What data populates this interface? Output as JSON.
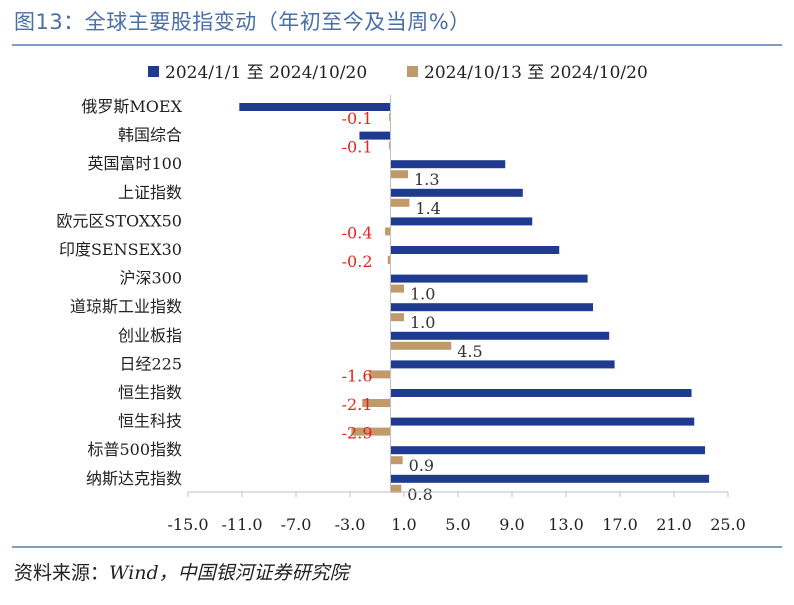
{
  "title": "图13：全球主要股指变动（年初至今及当周%）",
  "source_label": "资料来源：",
  "source_text": "Wind，中国银河证券研究院",
  "colors": {
    "series1": "#1f3b8f",
    "series2": "#c19a6b",
    "negative_label": "#e8231e",
    "title": "#4a6fa5"
  },
  "chart_data": {
    "type": "bar",
    "orientation": "horizontal",
    "title": "图13：全球主要股指变动（年初至今及当周%）",
    "categories": [
      "俄罗斯MOEX",
      "韩国综合",
      "英国富时100",
      "上证指数",
      "欧元区STOXX50",
      "印度SENSEX30",
      "沪深300",
      "道琼斯工业指数",
      "创业板指",
      "日经225",
      "恒生指数",
      "恒生科技",
      "标普500指数",
      "纳斯达克指数"
    ],
    "series": [
      {
        "name": "2024/1/1 至 2024/10/20",
        "values": [
          -11.2,
          -2.3,
          8.5,
          9.8,
          10.5,
          12.5,
          14.6,
          15.0,
          16.2,
          16.6,
          22.3,
          22.5,
          23.3,
          23.6
        ]
      },
      {
        "name": "2024/10/13 至 2024/10/20",
        "values": [
          -0.1,
          -0.1,
          1.3,
          1.4,
          -0.4,
          -0.2,
          1.0,
          1.0,
          4.5,
          -1.6,
          -2.1,
          -2.9,
          0.9,
          0.8
        ]
      }
    ],
    "data_labels": [
      "-0.1",
      "-0.1",
      "1.3",
      "1.4",
      "-0.4",
      "-0.2",
      "1.0",
      "1.0",
      "4.5",
      "-1.6",
      "-2.1",
      "-2.9",
      "0.9",
      "0.8"
    ],
    "xlim": [
      -15.0,
      25.0
    ],
    "xticks": [
      "-15.0",
      "-11.0",
      "-7.0",
      "-3.0",
      "1.0",
      "5.0",
      "9.0",
      "13.0",
      "17.0",
      "21.0",
      "25.0"
    ],
    "legend_position": "top",
    "grid": false
  }
}
